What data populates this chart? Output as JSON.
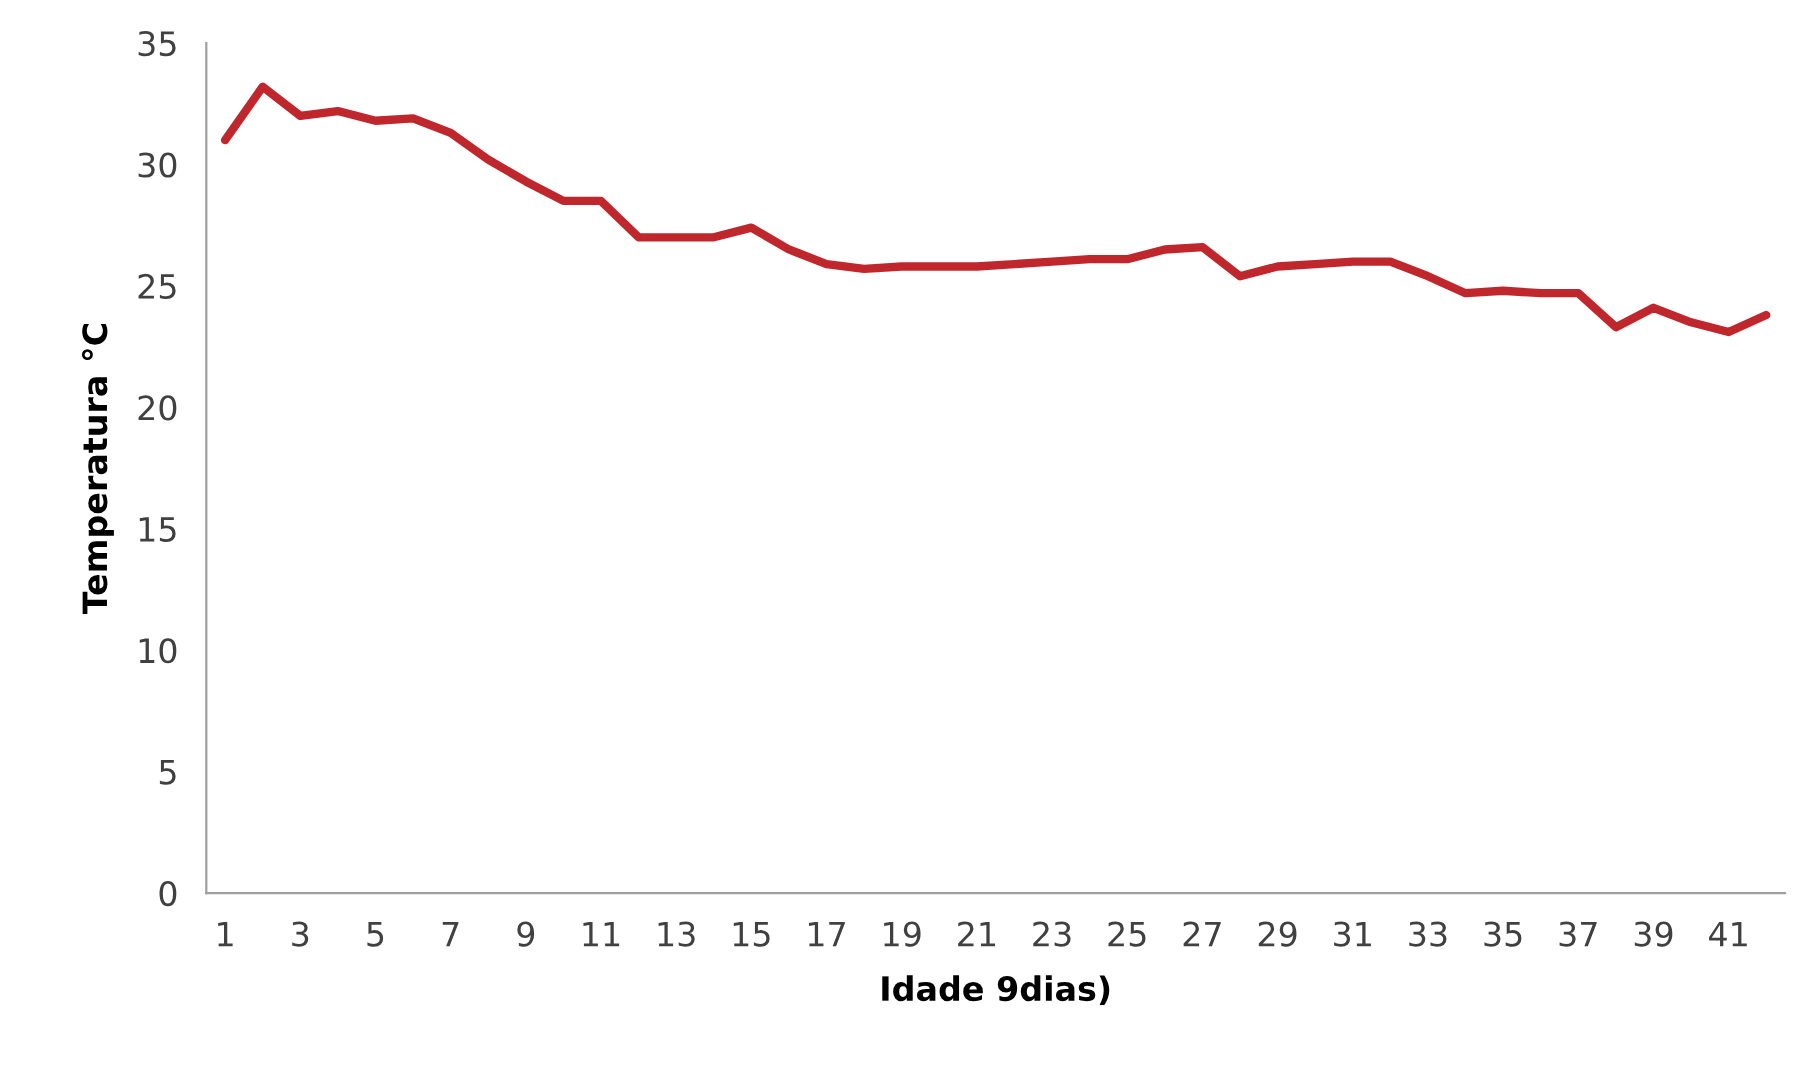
{
  "chart_data": {
    "type": "line",
    "xlabel": "Idade 9dias)",
    "ylabel": "Temperatura °C",
    "categories": [
      "1",
      null,
      "3",
      null,
      "5",
      null,
      "7",
      null,
      "9",
      null,
      "11",
      null,
      "13",
      null,
      "15",
      null,
      "17",
      null,
      "19",
      null,
      "21",
      null,
      "23",
      null,
      "25",
      null,
      "27",
      null,
      "29",
      null,
      "31",
      null,
      "33",
      null,
      "35",
      null,
      "37",
      null,
      "39",
      null,
      "41",
      null
    ],
    "series": [
      {
        "color": "#c0272d",
        "values": [
          31.0,
          33.2,
          32.0,
          32.2,
          31.8,
          31.9,
          31.3,
          30.2,
          29.3,
          28.5,
          28.5,
          27.0,
          27.0,
          27.0,
          27.4,
          26.5,
          25.9,
          25.7,
          25.8,
          25.8,
          25.8,
          25.9,
          26.0,
          26.1,
          26.1,
          26.5,
          26.6,
          25.4,
          25.8,
          25.9,
          26.0,
          26.0,
          25.4,
          24.7,
          24.8,
          24.7,
          24.7,
          23.3,
          24.1,
          23.5,
          23.1,
          23.8
        ]
      }
    ],
    "ylim": [
      0,
      35
    ],
    "yticks": [
      0,
      5,
      10,
      15,
      20,
      25,
      30,
      35
    ],
    "grid": false,
    "marker": "none",
    "line_style": "solid"
  }
}
